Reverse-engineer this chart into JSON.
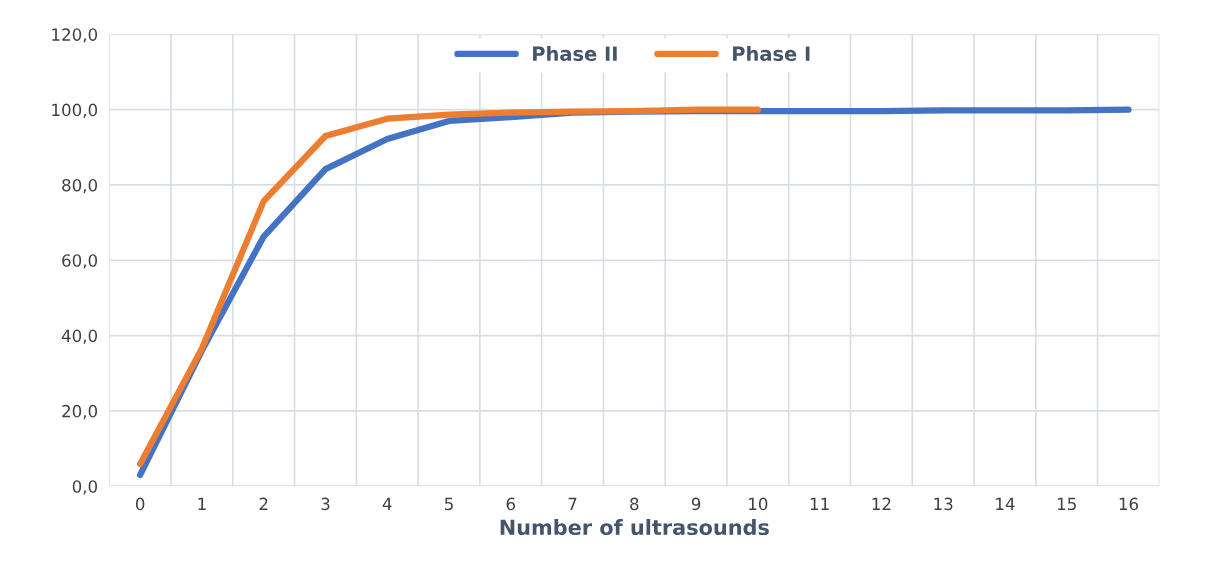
{
  "chart_data": {
    "type": "line",
    "xlabel": "Number of ultrasounds",
    "categories": [
      "0",
      "1",
      "2",
      "3",
      "4",
      "5",
      "6",
      "7",
      "8",
      "9",
      "10",
      "11",
      "12",
      "13",
      "14",
      "15",
      "16"
    ],
    "series": [
      {
        "name": "Phase II",
        "color": "#4472c4",
        "values": [
          3,
          36,
          66.3,
          84.2,
          92.2,
          97,
          98,
          99.2,
          99.5,
          99.6,
          99.6,
          99.6,
          99.6,
          99.8,
          99.8,
          99.8,
          100
        ]
      },
      {
        "name": "Phase I",
        "color": "#ed7d31",
        "values": [
          5.9,
          36.6,
          75.7,
          93,
          97.6,
          98.7,
          99.2,
          99.5,
          99.6,
          100,
          100,
          null,
          null,
          null,
          null,
          null,
          null
        ]
      }
    ],
    "ylim": [
      0,
      120
    ],
    "yticks": [
      {
        "value": 0,
        "label": "0,0"
      },
      {
        "value": 20,
        "label": "20,0"
      },
      {
        "value": 40,
        "label": "40,0"
      },
      {
        "value": 60,
        "label": "60,0"
      },
      {
        "value": 80,
        "label": "80,0"
      },
      {
        "value": 100,
        "label": "100,0"
      },
      {
        "value": 120,
        "label": "120,0"
      }
    ],
    "grid": true,
    "legend": "top",
    "marker": "none",
    "line_style": "solid"
  }
}
